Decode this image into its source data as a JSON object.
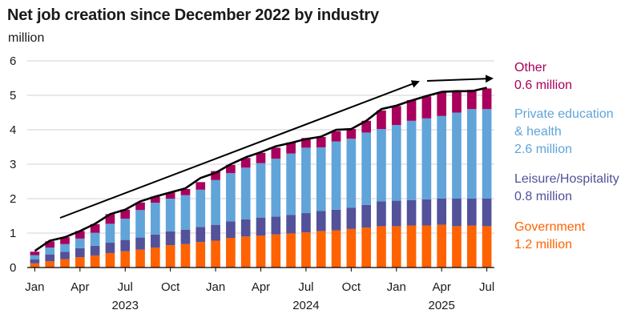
{
  "chart_data": {
    "type": "bar",
    "stacked": true,
    "title": "Net job creation since December 2022 by industry",
    "ylabel": "million",
    "ylim": [
      0,
      6
    ],
    "yticks": [
      0,
      1,
      2,
      3,
      4,
      5,
      6
    ],
    "grid": true,
    "x_tick_labels": [
      {
        "index": 0,
        "label": "Jan"
      },
      {
        "index": 3,
        "label": "Apr"
      },
      {
        "index": 6,
        "label": "Jul"
      },
      {
        "index": 9,
        "label": "Oct"
      },
      {
        "index": 12,
        "label": "Jan"
      },
      {
        "index": 15,
        "label": "Apr"
      },
      {
        "index": 18,
        "label": "Jul"
      },
      {
        "index": 21,
        "label": "Oct"
      },
      {
        "index": 24,
        "label": "Jan"
      },
      {
        "index": 27,
        "label": "Apr"
      },
      {
        "index": 30,
        "label": "Jul"
      }
    ],
    "year_labels": [
      {
        "index": 6,
        "label": "2023"
      },
      {
        "index": 18,
        "label": "2024"
      },
      {
        "index": 27,
        "label": "2025"
      }
    ],
    "categories": [
      "Jan 2023",
      "Feb 2023",
      "Mar 2023",
      "Apr 2023",
      "May 2023",
      "Jun 2023",
      "Jul 2023",
      "Aug 2023",
      "Sep 2023",
      "Oct 2023",
      "Nov 2023",
      "Dec 2023",
      "Jan 2024",
      "Feb 2024",
      "Mar 2024",
      "Apr 2024",
      "May 2024",
      "Jun 2024",
      "Jul 2024",
      "Aug 2024",
      "Sep 2024",
      "Oct 2024",
      "Nov 2024",
      "Dec 2024",
      "Jan 2025",
      "Feb 2025",
      "Mar 2025",
      "Apr 2025",
      "May 2025",
      "Jun 2025",
      "Jul 2025"
    ],
    "series": [
      {
        "name": "Government",
        "color": "#ff6200",
        "values": [
          0.12,
          0.18,
          0.24,
          0.3,
          0.35,
          0.42,
          0.47,
          0.52,
          0.58,
          0.65,
          0.68,
          0.74,
          0.78,
          0.86,
          0.9,
          0.93,
          0.96,
          0.99,
          1.02,
          1.06,
          1.08,
          1.12,
          1.16,
          1.2,
          1.2,
          1.22,
          1.22,
          1.24,
          1.2,
          1.22,
          1.2
        ]
      },
      {
        "name": "Leisure/Hospitality",
        "color": "#525199",
        "values": [
          0.12,
          0.2,
          0.22,
          0.26,
          0.28,
          0.3,
          0.33,
          0.35,
          0.38,
          0.4,
          0.42,
          0.44,
          0.46,
          0.48,
          0.5,
          0.52,
          0.52,
          0.54,
          0.56,
          0.58,
          0.6,
          0.62,
          0.66,
          0.72,
          0.74,
          0.74,
          0.76,
          0.76,
          0.8,
          0.78,
          0.8
        ]
      },
      {
        "name": "Private education & health",
        "color": "#60a4d9",
        "values": [
          0.12,
          0.2,
          0.22,
          0.28,
          0.38,
          0.55,
          0.62,
          0.8,
          0.92,
          0.95,
          1.0,
          1.08,
          1.3,
          1.4,
          1.5,
          1.58,
          1.68,
          1.78,
          1.9,
          1.85,
          1.98,
          2.0,
          2.1,
          2.1,
          2.2,
          2.3,
          2.35,
          2.4,
          2.5,
          2.6,
          2.6
        ]
      },
      {
        "name": "Other",
        "color": "#a8005c",
        "values": [
          0.1,
          0.18,
          0.2,
          0.22,
          0.25,
          0.28,
          0.26,
          0.22,
          0.18,
          0.18,
          0.18,
          0.22,
          0.26,
          0.24,
          0.28,
          0.3,
          0.32,
          0.32,
          0.28,
          0.3,
          0.3,
          0.28,
          0.34,
          0.54,
          0.55,
          0.6,
          0.64,
          0.68,
          0.64,
          0.56,
          0.6
        ]
      }
    ],
    "total_line": [
      0.48,
      0.78,
      0.88,
      1.06,
      1.27,
      1.55,
      1.68,
      1.92,
      2.06,
      2.18,
      2.3,
      2.6,
      2.75,
      3.0,
      3.2,
      3.35,
      3.52,
      3.62,
      3.73,
      3.8,
      4.0,
      4.02,
      4.26,
      4.6,
      4.7,
      4.85,
      4.98,
      5.1,
      5.12,
      5.12,
      5.22
    ]
  },
  "legend": [
    {
      "label_lines": [
        "Other"
      ],
      "value": "0.6 million",
      "color": "#a8005c"
    },
    {
      "label_lines": [
        "Private education",
        "& health"
      ],
      "value": "2.6 million",
      "color": "#60a4d9"
    },
    {
      "label_lines": [
        "Leisure/Hospitality"
      ],
      "value": "0.8 million",
      "color": "#525199"
    },
    {
      "label_lines": [
        "Government"
      ],
      "value": "1.2 million",
      "color": "#ff6200"
    }
  ]
}
